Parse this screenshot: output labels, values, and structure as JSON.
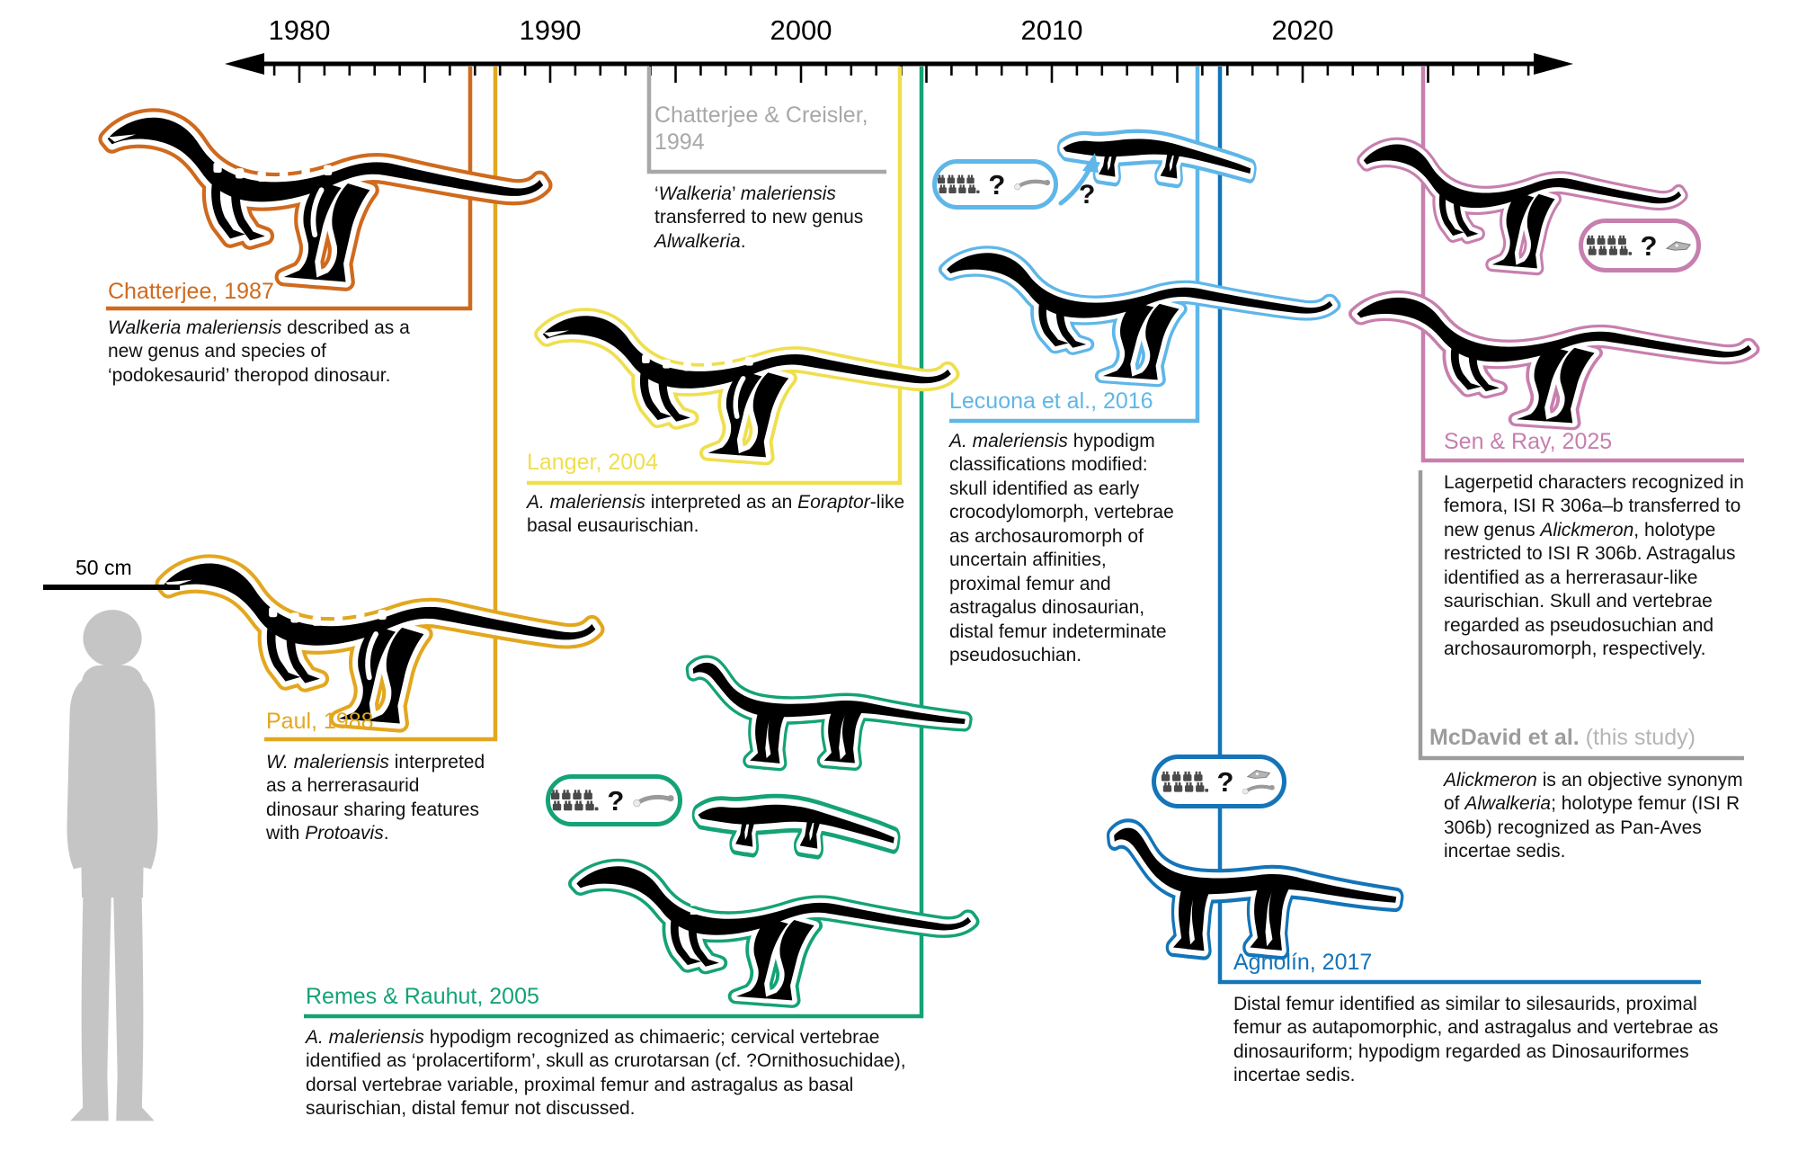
{
  "figure": "Timeline of taxonomic interpretations of Walkeria / Alwalkeria maleriensis",
  "timeline": {
    "decade_labels": [
      "1980",
      "1990",
      "2000",
      "2010",
      "2020"
    ],
    "tick_start_year": 1979,
    "tick_end_year": 2029,
    "axis_color": "#000000"
  },
  "scale_bar": {
    "label": "50 cm"
  },
  "entries": {
    "chatterjee1987": {
      "label": "Chatterjee, 1987",
      "year": 1987,
      "color": "#cf6a1e",
      "body": [
        {
          "t": "Walkeria maleriensis",
          "i": true
        },
        {
          "t": " described as a new genus and species of ‘podokesaurid’ theropod dinosaur."
        }
      ]
    },
    "paul1988": {
      "label": "Paul, 1988",
      "year": 1988,
      "color": "#e3a71f",
      "body": [
        {
          "t": "W. maleriensis",
          "i": true
        },
        {
          "t": " interpreted as a herrerasaurid dinosaur sharing features with "
        },
        {
          "t": "Protoavis",
          "i": true
        },
        {
          "t": "."
        }
      ]
    },
    "creisler1994": {
      "label": "Chatterjee & Creisler, 1994",
      "year": 1994,
      "color": "#a8a8a8",
      "body": [
        {
          "t": "‘"
        },
        {
          "t": "Walkeria",
          "i": true
        },
        {
          "t": "’ "
        },
        {
          "t": "maleriensis",
          "i": true
        },
        {
          "t": " transferred to new genus "
        },
        {
          "t": "Alwalkeria",
          "i": true
        },
        {
          "t": "."
        }
      ]
    },
    "langer2004": {
      "label": "Langer, 2004",
      "year": 2004,
      "color": "#efdf4e",
      "body": [
        {
          "t": "A. maleriensis",
          "i": true
        },
        {
          "t": " interpreted as an "
        },
        {
          "t": "Eoraptor",
          "i": true
        },
        {
          "t": "-like basal eusaurischian."
        }
      ]
    },
    "remes2005": {
      "label": "Remes & Rauhut, 2005",
      "year": 2005,
      "color": "#14a276",
      "body": [
        {
          "t": "A. maleriensis",
          "i": true
        },
        {
          "t": " hypodigm recognized as chimaeric; cervical vertebrae identified as ‘prolacertiform’, skull as crurotarsan (cf. ?Ornithosuchidae), dorsal vertebrae variable, proximal femur and astragalus as basal saurischian, distal femur not discussed."
        }
      ],
      "body_mark": "?",
      "capsule_icons": [
        "vertebrae-pictograms",
        "question-mark",
        "femur-icon"
      ],
      "capsule_mark": "?"
    },
    "lecuona2016": {
      "label": "Lecuona et al., 2016",
      "year": 2016,
      "color": "#5fb6e8",
      "body": [
        {
          "t": "A. maleriensis",
          "i": true
        },
        {
          "t": " hypodigm classifications modified: skull identified as early crocodylomorph, vertebrae as archosauromorph of uncertain affinities, proximal femur and astragalus dinosaurian, distal femur indeterminate pseudosuchian."
        }
      ],
      "body_mark": "?",
      "capsule_icons": [
        "vertebrae-pictograms",
        "question-mark",
        "femur-icon"
      ],
      "capsule_mark": "?",
      "arrow_mark": "?"
    },
    "agnolin2017": {
      "label": "Agnolín, 2017",
      "year": 2017,
      "color": "#1474b8",
      "body": [
        {
          "t": "Distal femur identified as similar to silesaurids, proximal femur as autapomorphic, and astragalus and vertebrae as dinosauriform; hypodigm regarded as Dinosauriformes incertae sedis."
        }
      ],
      "capsule_icons": [
        "vertebrae-pictograms",
        "question-mark",
        "skull-icon",
        "femur-icon"
      ],
      "capsule_mark": "?"
    },
    "senray2025": {
      "label": "Sen & Ray, 2025",
      "year": 2025,
      "color": "#c77fae",
      "body": [
        {
          "t": "Lagerpetid characters recognized in femora, ISI R 306a–b transferred to new genus "
        },
        {
          "t": "Alickmeron",
          "i": true
        },
        {
          "t": ", holotype restricted to ISI R 306b. Astragalus identified as a herrerasaur-like saurischian. Skull and vertebrae regarded as pseudosuchian and archosauromorph, respectively."
        }
      ],
      "body_mark": "?",
      "capsule_icons": [
        "vertebrae-pictograms",
        "question-mark",
        "skull-icon"
      ],
      "capsule_mark": "?"
    },
    "mcdavid": {
      "label_segments": [
        {
          "t": "McDavid et al.",
          "b": true
        },
        {
          "t": " (this study)",
          "c": "#b5b5b5"
        }
      ],
      "color": "#9c9c9c",
      "body": [
        {
          "t": "Alickmeron",
          "i": true
        },
        {
          "t": " is an objective synonym of "
        },
        {
          "t": "Alwalkeria",
          "i": true
        },
        {
          "t": "; holotype femur (ISI R 306b) recognized as Pan-Aves incertae sedis."
        }
      ]
    }
  }
}
